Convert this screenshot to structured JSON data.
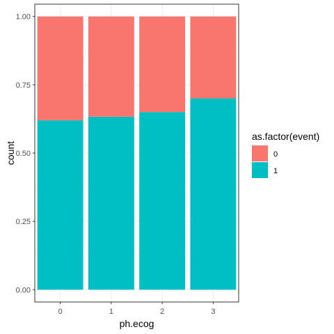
{
  "chart_data": {
    "type": "bar",
    "stacked": true,
    "xlabel": "ph.ecog",
    "ylabel": "count",
    "categories": [
      "0",
      "1",
      "2",
      "3"
    ],
    "ylim": [
      0,
      1
    ],
    "yticks": [
      "0.00",
      "0.25",
      "0.50",
      "0.75",
      "1.00"
    ],
    "grid": true,
    "legend": {
      "title": "as.factor(event)",
      "placement": "right",
      "entries": [
        "0",
        "1"
      ]
    },
    "series": [
      {
        "name": "1",
        "color": "#00BFC4",
        "values": [
          0.62,
          0.633,
          0.65,
          0.7
        ]
      },
      {
        "name": "0",
        "color": "#F8766D",
        "values": [
          0.38,
          0.367,
          0.35,
          0.3
        ]
      }
    ]
  }
}
